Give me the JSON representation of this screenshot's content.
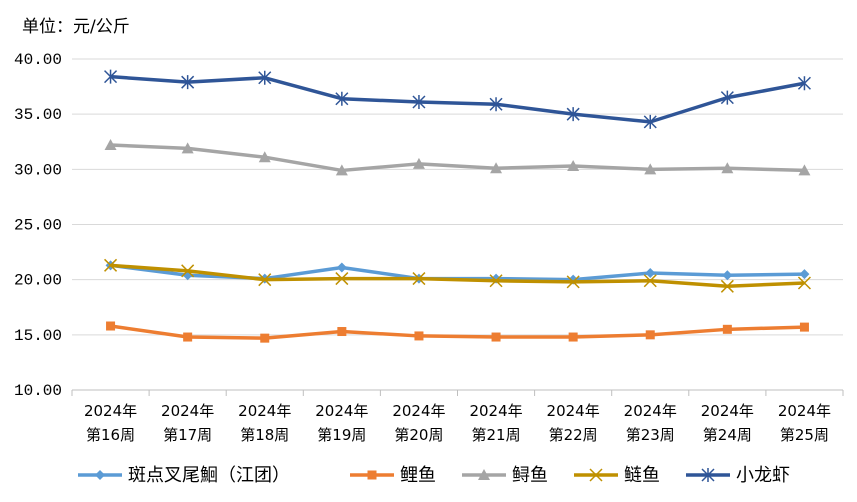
{
  "unit_text": "单位：元/公斤",
  "chart_data": {
    "type": "line",
    "title": "",
    "xlabel": "",
    "ylabel": "单位：元/公斤",
    "ylim": [
      10,
      40
    ],
    "y_ticks": [
      "10.00",
      "15.00",
      "20.00",
      "25.00",
      "30.00",
      "35.00",
      "40.00"
    ],
    "grid": "horizontal",
    "legend_position": "bottom",
    "categories": [
      [
        "2024年",
        "第16周"
      ],
      [
        "2024年",
        "第17周"
      ],
      [
        "2024年",
        "第18周"
      ],
      [
        "2024年",
        "第19周"
      ],
      [
        "2024年",
        "第20周"
      ],
      [
        "2024年",
        "第21周"
      ],
      [
        "2024年",
        "第22周"
      ],
      [
        "2024年",
        "第23周"
      ],
      [
        "2024年",
        "第24周"
      ],
      [
        "2024年",
        "第25周"
      ]
    ],
    "series": [
      {
        "name": "斑点叉尾鮰（江团）",
        "color": "#5B9BD5",
        "marker": "diamond",
        "values": [
          21.3,
          20.4,
          20.1,
          21.1,
          20.1,
          20.1,
          20.0,
          20.6,
          20.4,
          20.5
        ]
      },
      {
        "name": "鲤鱼",
        "color": "#ED7D31",
        "marker": "square",
        "values": [
          15.8,
          14.8,
          14.7,
          15.3,
          14.9,
          14.8,
          14.8,
          15.0,
          15.5,
          15.7
        ]
      },
      {
        "name": "鲟鱼",
        "color": "#A5A5A5",
        "marker": "triangle",
        "values": [
          32.2,
          31.9,
          31.1,
          29.9,
          30.5,
          30.1,
          30.3,
          30.0,
          30.1,
          29.9
        ]
      },
      {
        "name": "鲢鱼",
        "color": "#BF9000",
        "marker": "x",
        "values": [
          21.3,
          20.8,
          20.0,
          20.1,
          20.1,
          19.9,
          19.8,
          19.9,
          19.4,
          19.7
        ]
      },
      {
        "name": "小龙虾",
        "color": "#2F5597",
        "marker": "star",
        "values": [
          38.4,
          37.9,
          38.3,
          36.4,
          36.1,
          35.9,
          35.0,
          34.3,
          36.5,
          37.8
        ]
      }
    ]
  }
}
